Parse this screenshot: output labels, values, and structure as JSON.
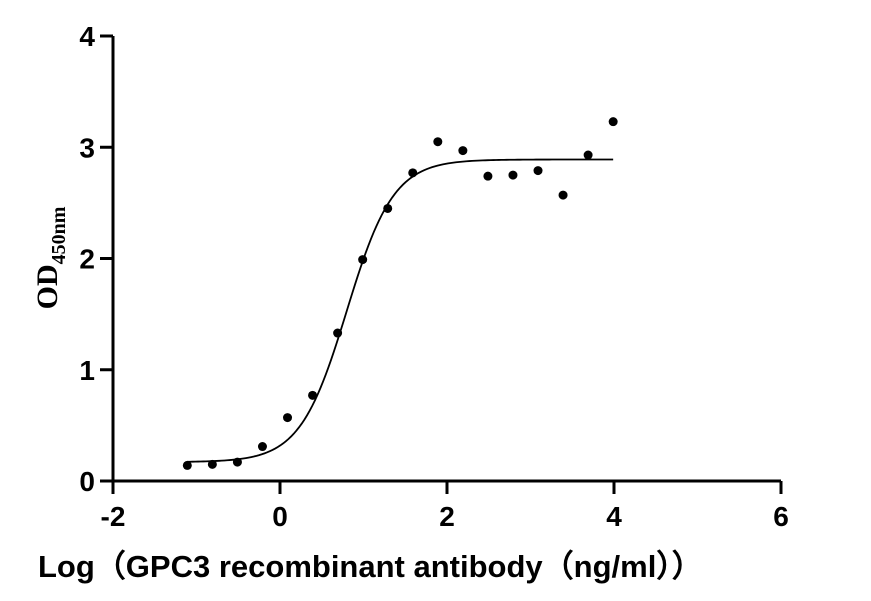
{
  "chart_data": {
    "type": "scatter",
    "xlabel": "Log（GPC3 recombinant antibody（ng/ml））",
    "ylabel": "OD",
    "ylabel_subscript": "450nm",
    "xlim": [
      -2,
      6
    ],
    "ylim": [
      0,
      4
    ],
    "x_ticks": [
      -2,
      0,
      2,
      4,
      6
    ],
    "y_ticks": [
      0,
      1,
      2,
      3,
      4
    ],
    "x_tick_labels": [
      "-2",
      "0",
      "2",
      "4",
      "6"
    ],
    "y_tick_labels": [
      "0",
      "1",
      "2",
      "3",
      "4"
    ],
    "grid": false,
    "series": [
      {
        "x": [
          -1.11,
          -0.81,
          -0.51,
          -0.21,
          0.09,
          0.39,
          0.69,
          0.99,
          1.29,
          1.59,
          1.89,
          2.19,
          2.49,
          2.79,
          3.09,
          3.39,
          3.69,
          3.99
        ],
        "y": [
          0.14,
          0.15,
          0.17,
          0.31,
          0.57,
          0.77,
          1.33,
          1.99,
          2.45,
          2.77,
          3.05,
          2.97,
          2.74,
          2.75,
          2.79,
          2.57,
          2.93,
          3.23
        ]
      }
    ],
    "fit_curve": {
      "model": "sigmoidal",
      "bottom": 0.17,
      "top": 2.89,
      "log_ec50": 0.8,
      "hill_slope": 1.55,
      "x_range": [
        -1.11,
        3.99
      ]
    }
  }
}
